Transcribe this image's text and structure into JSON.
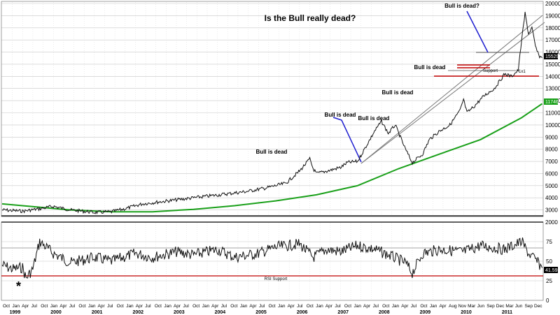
{
  "chart_data": [
    {
      "type": "line",
      "panel": "price",
      "title": "Is the Bull really dead?",
      "ylim": [
        2000,
        20000
      ],
      "y_ticks": [
        2000,
        3000,
        4000,
        5000,
        6000,
        7000,
        8000,
        9000,
        10000,
        11000,
        12000,
        13000,
        14000,
        15000,
        16000,
        17000,
        18000,
        19000,
        20000
      ],
      "x_range": [
        "1998-10",
        "2011-12"
      ],
      "series": [
        {
          "name": "price",
          "x": [
            "1998-10",
            "1999-04",
            "1999-09",
            "2000-01",
            "2000-06",
            "2001-01",
            "2001-06",
            "2001-10",
            "2002-03",
            "2002-09",
            "2003-03",
            "2003-09",
            "2004-03",
            "2004-09",
            "2005-03",
            "2005-09",
            "2006-01",
            "2006-04",
            "2006-05",
            "2006-06",
            "2006-09",
            "2007-01",
            "2007-03",
            "2007-06",
            "2007-09",
            "2007-11",
            "2008-01",
            "2008-03",
            "2008-05",
            "2008-08",
            "2008-10",
            "2009-01",
            "2009-03",
            "2009-06",
            "2009-09",
            "2009-12",
            "2010-01",
            "2010-02",
            "2010-04",
            "2010-07",
            "2010-10",
            "2011-01",
            "2011-03",
            "2011-05",
            "2011-06",
            "2011-07",
            "2011-08",
            "2011-09",
            "2011-10",
            "2011-11",
            "2011-12"
          ],
          "values": [
            3000,
            2900,
            3100,
            3300,
            3000,
            2800,
            2850,
            3100,
            3500,
            3700,
            3900,
            4100,
            4300,
            4500,
            4800,
            5200,
            6200,
            7200,
            6400,
            6000,
            6200,
            6500,
            6900,
            7000,
            8500,
            9500,
            10300,
            9300,
            10000,
            8000,
            6900,
            7600,
            8800,
            9500,
            10000,
            11200,
            12100,
            11000,
            11500,
            12400,
            13000,
            14200,
            14000,
            14500,
            17000,
            19200,
            17500,
            18000,
            16500,
            15700,
            15529
          ]
        },
        {
          "name": "moving average",
          "x": [
            "1998-10",
            "1999-06",
            "2000-06",
            "2001-06",
            "2002-06",
            "2003-06",
            "2004-06",
            "2005-06",
            "2006-06",
            "2007-06",
            "2008-06",
            "2009-06",
            "2010-06",
            "2011-06",
            "2011-12"
          ],
          "values": [
            3500,
            3300,
            3000,
            2850,
            2850,
            3050,
            3350,
            3750,
            4250,
            5000,
            6400,
            7600,
            8800,
            10600,
            11746
          ]
        }
      ],
      "annotations": [
        "Bull is dead",
        "Bull is dead",
        "Bull is dead",
        "Bull is dead",
        "Bull is dead",
        "Bull is dead?",
        "Support",
        "1x1"
      ],
      "last_value_label": "15529",
      "ma_value_label": "11746",
      "x_tick_labels": [
        "Oct",
        "Jan",
        "Apr",
        "Jul",
        "Oct",
        "Jan",
        "Apr",
        "Jul",
        "Oct",
        "Jan",
        "Apr",
        "Jul",
        "Oct",
        "Jan",
        "Apr",
        "Jul",
        "Oct",
        "Jan",
        "Apr",
        "Jul",
        "Oct",
        "Jan",
        "Apr",
        "Jul",
        "Oct",
        "Jan",
        "Apr",
        "Jul",
        "Oct",
        "Jan",
        "Apr",
        "Jul",
        "Oct",
        "Jan",
        "Apr",
        "Jul",
        "Oct",
        "Jan",
        "Apr",
        "Jul",
        "Oct",
        "Jan",
        "Apr",
        "Jul",
        "Oct",
        "Jan",
        "Apr",
        "Aug",
        "Nov",
        "Mar",
        "Jun",
        "Sep",
        "Dec",
        "Mar",
        "Jun",
        "Sep",
        "Dec"
      ],
      "year_labels": [
        "1999",
        "2000",
        "2001",
        "2002",
        "2003",
        "2004",
        "2005",
        "2006",
        "2007",
        "2008",
        "2009",
        "2010",
        "2011"
      ]
    },
    {
      "type": "line",
      "panel": "rsi",
      "ylim": [
        0,
        100
      ],
      "y_ticks": [
        0,
        25,
        50,
        75
      ],
      "series": [
        {
          "name": "RSI",
          "x": [
            "1998-10",
            "1999-01",
            "1999-04",
            "1999-05",
            "1999-07",
            "1999-09",
            "2000-01",
            "2000-06",
            "2001-01",
            "2001-06",
            "2002-01",
            "2002-06",
            "2003-01",
            "2003-06",
            "2004-01",
            "2004-06",
            "2005-01",
            "2005-06",
            "2006-01",
            "2006-05",
            "2006-09",
            "2007-01",
            "2007-06",
            "2007-11",
            "2008-03",
            "2008-08",
            "2008-10",
            "2009-01",
            "2009-06",
            "2010-01",
            "2010-06",
            "2011-01",
            "2011-06",
            "2011-08",
            "2011-10",
            "2011-12"
          ],
          "values": [
            45,
            40,
            42,
            28,
            40,
            75,
            60,
            48,
            55,
            50,
            60,
            55,
            62,
            58,
            65,
            55,
            60,
            68,
            72,
            55,
            65,
            62,
            70,
            65,
            58,
            48,
            35,
            60,
            65,
            62,
            70,
            65,
            75,
            60,
            52,
            41.59
          ]
        }
      ],
      "annotations": [
        "RSI Support",
        "*"
      ],
      "last_value_label": "41.59"
    }
  ]
}
